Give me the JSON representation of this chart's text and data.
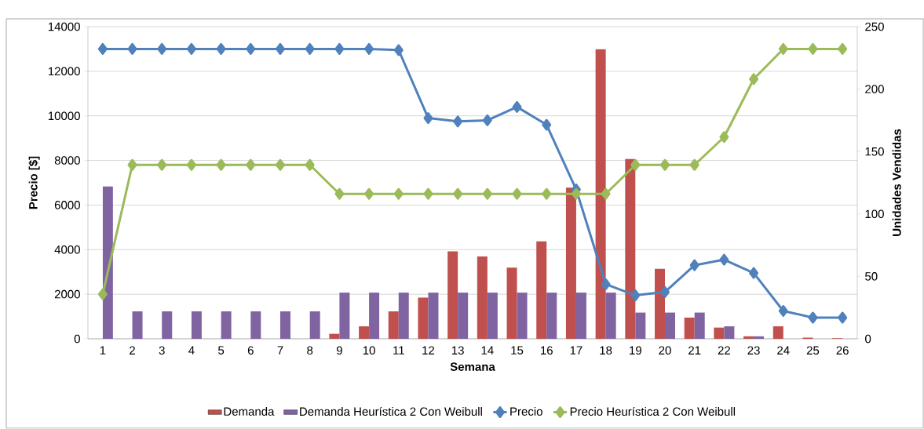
{
  "chart_data": {
    "type": "bar",
    "xlabel": "Semana",
    "ylabel": "Precio [$]",
    "y2label": "Unidades Vendidas",
    "categories": [
      "1",
      "2",
      "3",
      "4",
      "5",
      "6",
      "7",
      "8",
      "9",
      "10",
      "11",
      "12",
      "13",
      "14",
      "15",
      "16",
      "17",
      "18",
      "19",
      "20",
      "21",
      "22",
      "23",
      "24",
      "25",
      "26"
    ],
    "ylim": [
      0,
      14000
    ],
    "yticks": [
      0,
      2000,
      4000,
      6000,
      8000,
      10000,
      12000,
      14000
    ],
    "y2lim": [
      0,
      250
    ],
    "y2ticks": [
      0,
      50,
      100,
      150,
      200,
      250
    ],
    "grid": "y",
    "legend": "bottom",
    "marker": "diamond",
    "series": [
      {
        "name": "Demanda",
        "axis": "y2",
        "color": "#c0504d",
        "values": [
          0,
          0,
          0,
          0,
          0,
          0,
          0,
          0,
          4,
          10,
          22,
          33,
          70,
          66,
          57,
          78,
          121,
          232,
          144,
          56,
          17,
          9,
          2,
          10,
          1,
          0.5
        ]
      },
      {
        "name": "Demanda Heurística 2 Con Weibull",
        "axis": "y2",
        "color": "#8064a2",
        "values": [
          122,
          22,
          22,
          22,
          22,
          22,
          22,
          22,
          37,
          37,
          37,
          37,
          37,
          37,
          37,
          37,
          37,
          37,
          21,
          21,
          21,
          10,
          2,
          0,
          0,
          0
        ]
      },
      {
        "name": "Precio",
        "type": "line",
        "color": "#4f81bd",
        "values": [
          13000,
          13000,
          13000,
          13000,
          13000,
          13000,
          13000,
          13000,
          13000,
          13000,
          12950,
          9900,
          9750,
          9800,
          10400,
          9600,
          6700,
          2450,
          1950,
          2100,
          3300,
          3550,
          2950,
          1250,
          950,
          950
        ]
      },
      {
        "name": "Precio Heurística 2 Con Weibull",
        "type": "line",
        "color": "#9bbb59",
        "values": [
          2000,
          7800,
          7800,
          7800,
          7800,
          7800,
          7800,
          7800,
          6500,
          6500,
          6500,
          6500,
          6500,
          6500,
          6500,
          6500,
          6500,
          6500,
          7800,
          7800,
          7800,
          9050,
          11650,
          13000,
          13000,
          13000
        ]
      }
    ]
  }
}
